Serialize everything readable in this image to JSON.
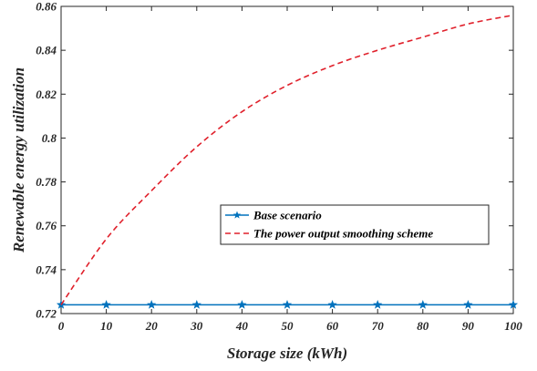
{
  "chart_data": {
    "type": "line",
    "xlabel": "Storage size (kWh)",
    "ylabel": "Renewable energy utilization",
    "xlim": [
      0,
      100
    ],
    "ylim": [
      0.72,
      0.86
    ],
    "xticks": [
      "0",
      "10",
      "20",
      "30",
      "40",
      "50",
      "60",
      "70",
      "80",
      "90",
      "100"
    ],
    "yticks": [
      "0.72",
      "0.74",
      "0.76",
      "0.78",
      "0.8",
      "0.82",
      "0.84",
      "0.86"
    ],
    "grid": false,
    "legend_position": "center-right",
    "x": [
      0,
      10,
      20,
      30,
      40,
      50,
      60,
      70,
      80,
      90,
      100
    ],
    "series": [
      {
        "name": "Base scenario",
        "color": "#0072BD",
        "style": "solid",
        "marker": "star",
        "values": [
          0.724,
          0.724,
          0.724,
          0.724,
          0.724,
          0.724,
          0.724,
          0.724,
          0.724,
          0.724,
          0.724
        ]
      },
      {
        "name": "The power output smoothing scheme",
        "color": "#E0202B",
        "style": "dashed",
        "marker": "none",
        "values": [
          0.724,
          0.754,
          0.776,
          0.796,
          0.812,
          0.824,
          0.833,
          0.84,
          0.846,
          0.852,
          0.856
        ]
      }
    ]
  }
}
